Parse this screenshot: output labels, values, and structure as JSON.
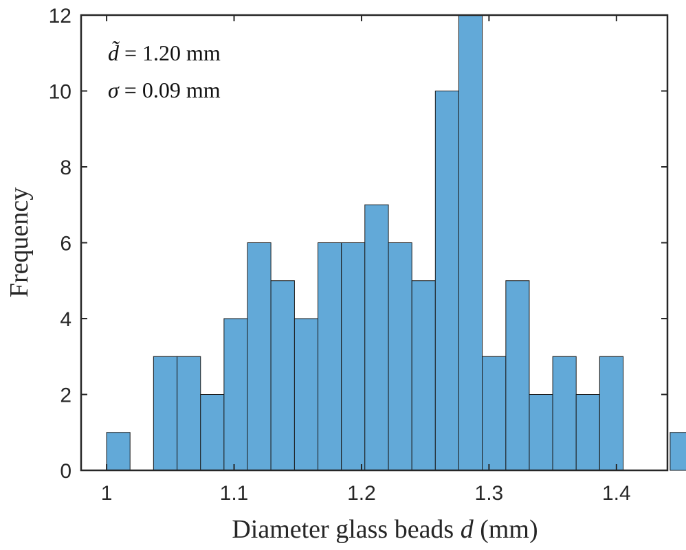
{
  "chart_data": {
    "type": "bar",
    "title": "",
    "xlabel": "Diameter glass beads",
    "xlabel_var": "d",
    "xlabel_unit": "(mm)",
    "ylabel": "Frequency",
    "xlim": [
      0.98,
      1.44
    ],
    "ylim": [
      0,
      12
    ],
    "bin_width": 0.01842,
    "bins": [
      {
        "start": 1.0,
        "end": 1.0184,
        "count": 1
      },
      {
        "start": 1.0184,
        "end": 1.0368,
        "count": 0
      },
      {
        "start": 1.0368,
        "end": 1.0553,
        "count": 3
      },
      {
        "start": 1.0553,
        "end": 1.0737,
        "count": 3
      },
      {
        "start": 1.0737,
        "end": 1.0921,
        "count": 2
      },
      {
        "start": 1.0921,
        "end": 1.1105,
        "count": 4
      },
      {
        "start": 1.1105,
        "end": 1.1289,
        "count": 6
      },
      {
        "start": 1.1289,
        "end": 1.1474,
        "count": 5
      },
      {
        "start": 1.1474,
        "end": 1.1658,
        "count": 4
      },
      {
        "start": 1.1658,
        "end": 1.1842,
        "count": 6
      },
      {
        "start": 1.1842,
        "end": 1.2026,
        "count": 6
      },
      {
        "start": 1.2026,
        "end": 1.2211,
        "count": 7
      },
      {
        "start": 1.2211,
        "end": 1.2395,
        "count": 6
      },
      {
        "start": 1.2395,
        "end": 1.2579,
        "count": 5
      },
      {
        "start": 1.2579,
        "end": 1.2763,
        "count": 10
      },
      {
        "start": 1.2763,
        "end": 1.2947,
        "count": 12
      },
      {
        "start": 1.2947,
        "end": 1.3132,
        "count": 3
      },
      {
        "start": 1.3132,
        "end": 1.3316,
        "count": 5
      },
      {
        "start": 1.3316,
        "end": 1.35,
        "count": 2
      },
      {
        "start": 1.35,
        "end": 1.3684,
        "count": 3
      },
      {
        "start": 1.3684,
        "end": 1.3868,
        "count": 2
      },
      {
        "start": 1.3868,
        "end": 1.4053,
        "count": 3
      },
      {
        "start": 1.4053,
        "end": 1.4237,
        "count": 0
      },
      {
        "start": 1.4237,
        "end": 1.4421,
        "count": 0
      },
      {
        "start": 1.4421,
        "end": 1.4605,
        "count": 1
      }
    ],
    "xticks": [
      1,
      1.1,
      1.2,
      1.3,
      1.4
    ],
    "xtick_labels": [
      "1",
      "1.1",
      "1.2",
      "1.3",
      "1.4"
    ],
    "yticks": [
      0,
      2,
      4,
      6,
      8,
      10,
      12
    ],
    "ytick_labels": [
      "0",
      "2",
      "4",
      "6",
      "8",
      "10",
      "12"
    ],
    "grid": false,
    "bar_color": "#62a9d8",
    "edge_color": "#1a1a1a",
    "annotations": {
      "median_label": "d̃",
      "median_value": "= 1.20 mm",
      "sigma_label": "σ",
      "sigma_value": "= 0.09 mm"
    }
  }
}
